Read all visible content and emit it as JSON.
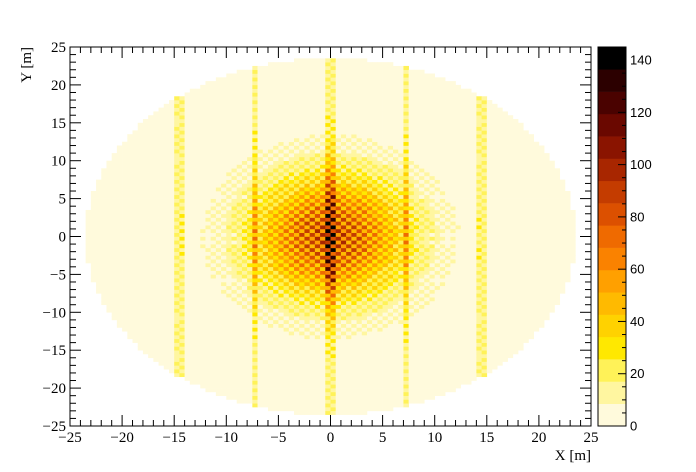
{
  "chart_data": {
    "type": "heatmap",
    "xlabel": "X [m]",
    "ylabel": "Y [m]",
    "xlim": [
      -25,
      25
    ],
    "ylim": [
      -25,
      25
    ],
    "x_ticks": [
      -25,
      -20,
      -15,
      -10,
      -5,
      0,
      5,
      10,
      15,
      20,
      25
    ],
    "y_ticks": [
      -25,
      -20,
      -15,
      -10,
      -5,
      0,
      5,
      10,
      15,
      20,
      25
    ],
    "x_tick_labels": [
      "−25",
      "−20",
      "−15",
      "−10",
      "−5",
      "0",
      "5",
      "10",
      "15",
      "20",
      "25"
    ],
    "y_tick_labels": [
      "−25",
      "−20",
      "−15",
      "−10",
      "−5",
      "0",
      "5",
      "10",
      "15",
      "20",
      "25"
    ],
    "footprint": {
      "shape": "ellipse",
      "center": [
        0,
        0
      ],
      "semi_axis_x": 23.5,
      "semi_axis_y": 23.5
    },
    "bright_columns_x": [
      -14.5,
      -7.2,
      0,
      7.2,
      14.5
    ],
    "central_peak_x": [
      0,
      0.5
    ],
    "grid": false,
    "colorbar": {
      "min": 0,
      "max": 145,
      "ticks": [
        0,
        20,
        40,
        60,
        80,
        100,
        120,
        140
      ],
      "tick_labels": [
        "0",
        "20",
        "40",
        "60",
        "80",
        "100",
        "120",
        "140"
      ],
      "placement": "right"
    },
    "palette": [
      "#fffadc",
      "#fff6a0",
      "#fff258",
      "#ffe800",
      "#ffd200",
      "#ffba00",
      "#ffa000",
      "#fa8200",
      "#ef6a00",
      "#dc5000",
      "#c43c00",
      "#a82600",
      "#8a1400",
      "#6a0800",
      "#4a0200",
      "#2c0000",
      "#000000"
    ]
  }
}
